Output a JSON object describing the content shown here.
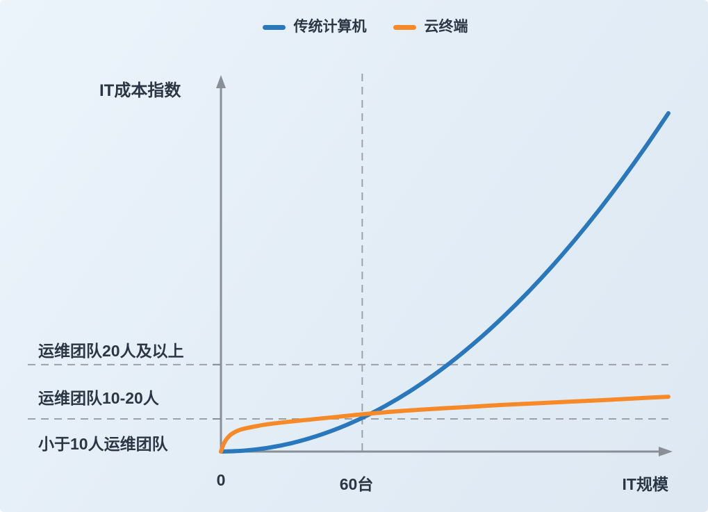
{
  "legend": {
    "items": [
      {
        "label": "传统计算机",
        "color": "#2878bb"
      },
      {
        "label": "云终端",
        "color": "#f68a28"
      }
    ]
  },
  "chart_data": {
    "type": "line",
    "title": "",
    "xlabel": "IT规模",
    "ylabel": "IT成本指数",
    "x_range": [
      0,
      190
    ],
    "y_range": [
      0,
      100
    ],
    "grid": false,
    "legend_position": "top-center",
    "x_ticks": [
      {
        "value": 0,
        "label": "0"
      },
      {
        "value": 60,
        "label": "60台"
      }
    ],
    "series": [
      {
        "name": "传统计算机",
        "color": "#2878bb",
        "points": [
          [
            0,
            0
          ],
          [
            10,
            0.28
          ],
          [
            20,
            1.11
          ],
          [
            30,
            2.49
          ],
          [
            40,
            4.43
          ],
          [
            50,
            6.93
          ],
          [
            60,
            9.97
          ],
          [
            70,
            13.57
          ],
          [
            80,
            17.73
          ],
          [
            90,
            22.44
          ],
          [
            100,
            27.7
          ],
          [
            110,
            33.52
          ],
          [
            120,
            39.89
          ],
          [
            130,
            46.81
          ],
          [
            140,
            54.29
          ],
          [
            150,
            62.33
          ],
          [
            160,
            70.91
          ],
          [
            170,
            80.06
          ],
          [
            180,
            89.75
          ],
          [
            190,
            100
          ]
        ]
      },
      {
        "name": "云终端",
        "color": "#f68a28",
        "points": [
          [
            0,
            0
          ],
          [
            1,
            2
          ],
          [
            2,
            3.3
          ],
          [
            3,
            4.2
          ],
          [
            4,
            4.9
          ],
          [
            5,
            5.4
          ],
          [
            6,
            5.8
          ],
          [
            8,
            6.4
          ],
          [
            10,
            6.8
          ],
          [
            15,
            7.5
          ],
          [
            20,
            8.1
          ],
          [
            30,
            8.9
          ],
          [
            40,
            9.6
          ],
          [
            50,
            10.3
          ],
          [
            60,
            11
          ],
          [
            75,
            11.9
          ],
          [
            90,
            12.6
          ],
          [
            105,
            13.2
          ],
          [
            120,
            13.8
          ],
          [
            135,
            14.3
          ],
          [
            150,
            14.8
          ],
          [
            165,
            15.3
          ],
          [
            178,
            15.8
          ],
          [
            190,
            16.2
          ]
        ]
      }
    ],
    "horizontal_reference_lines": [
      {
        "y": 25.7,
        "label": "运维团队20人及以上"
      },
      {
        "y": 9.65,
        "label": "运维团队10-20人"
      }
    ],
    "zone_label": "小于10人运维团队",
    "vertical_reference_line": {
      "x": 60
    }
  },
  "colors": {
    "axis": "#898f97",
    "dashed": "#9ba1a9",
    "text": "#2b3644",
    "background_top": "#ecf4fb",
    "background_bottom": "#dde8f2"
  }
}
